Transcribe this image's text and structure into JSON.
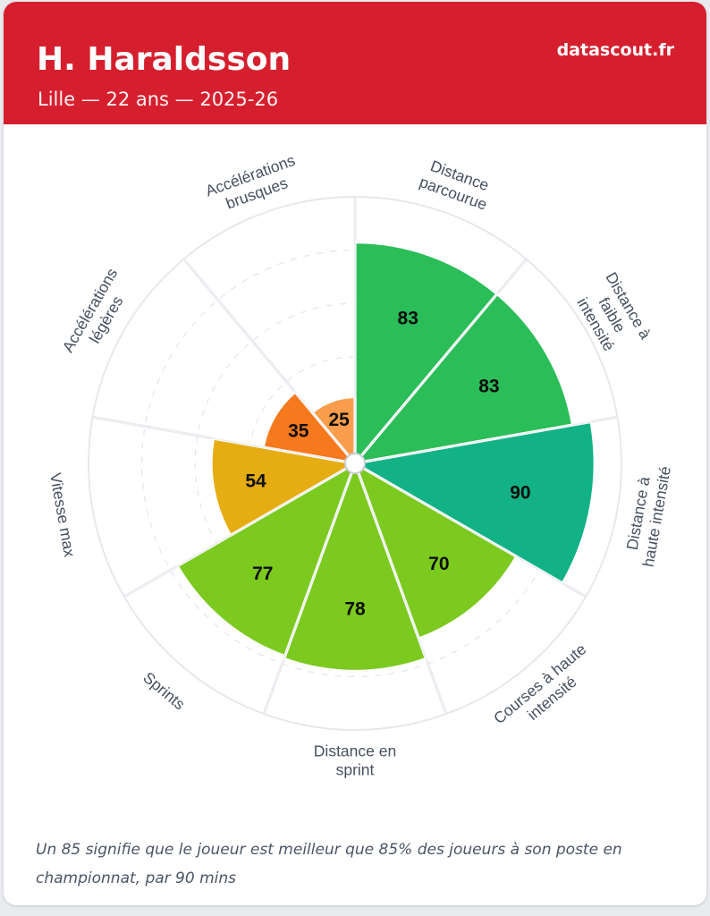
{
  "header": {
    "title": "H. Haraldsson",
    "subtitle": "Lille — 22 ans — 2025-26",
    "brand": "datascout.fr",
    "bg_color": "#d61f2e"
  },
  "chart_data": {
    "type": "bar",
    "variant": "polar-pizza",
    "title": "",
    "categories": [
      "Distance\nparcourue",
      "Distance à\nfaible\nintensité",
      "Distance à\nhaute intensité",
      "Courses à haute\nintensité",
      "Distance en\nsprint",
      "Sprints",
      "Vitesse max",
      "Accélérations\nlégères",
      "Accélérations\nbrusques"
    ],
    "values": [
      83,
      83,
      90,
      70,
      78,
      77,
      54,
      35,
      25
    ],
    "colors": [
      "#2abd58",
      "#2abd58",
      "#12b286",
      "#7cc91f",
      "#7cc91f",
      "#7cc91f",
      "#e6ad12",
      "#f7791d",
      "#f99d4c"
    ],
    "rlim": [
      0,
      100
    ],
    "gridlines": [
      20,
      40,
      60,
      80
    ],
    "grid_on": true,
    "start_angle_deg": 0,
    "direction": "clockwise",
    "value_label_color": "#0d0d0d",
    "category_label_color": "#46505f",
    "grid_color": "#e3e5ea",
    "ring_color": "#e7e8ec",
    "spoke_color": "#e4e6eb",
    "slice_edge_color": "#ffffff"
  },
  "footer": {
    "note": "Un 85 signifie que le joueur est meilleur que 85% des joueurs à son poste en championnat, par 90 mins"
  }
}
